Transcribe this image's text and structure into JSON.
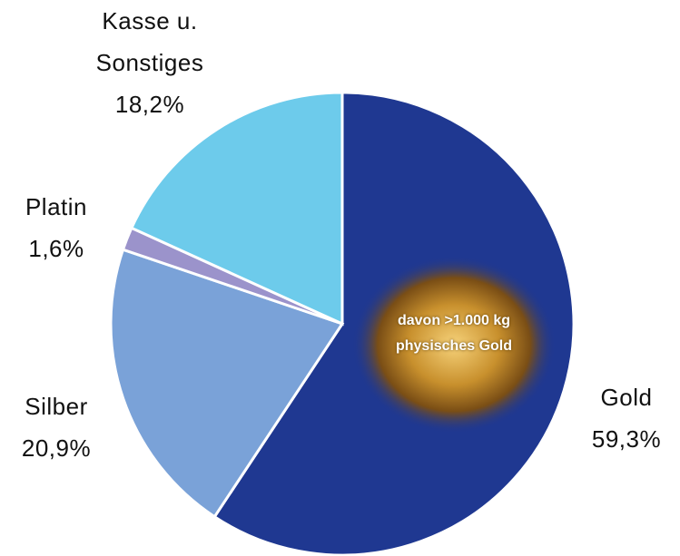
{
  "chart_data": {
    "type": "pie",
    "categories": [
      "Gold",
      "Silber",
      "Platin",
      "Kasse u. Sonstiges"
    ],
    "values": [
      59.3,
      20.9,
      1.6,
      18.2
    ],
    "value_labels": [
      "59,3%",
      "20,9%",
      "1,6%",
      "18,2%"
    ],
    "colors": [
      "#1f3891",
      "#7aa2d8",
      "#9b93cb",
      "#6dcbeb"
    ],
    "annotation": "davon >1.000 kg physisches Gold"
  }
}
